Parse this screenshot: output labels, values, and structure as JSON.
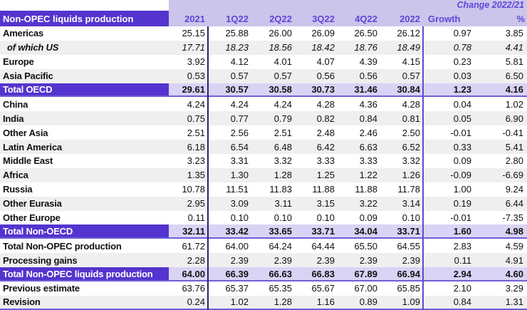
{
  "chart_data": {
    "type": "table",
    "title": "Non-OPEC liquids production",
    "change_header": "Change 2022/21",
    "columns": [
      "2021",
      "1Q22",
      "2Q22",
      "3Q22",
      "4Q22",
      "2022",
      "Growth",
      "%"
    ],
    "rows": [
      {
        "label": "Americas",
        "bg": "white",
        "values": [
          "25.15",
          "25.88",
          "26.00",
          "26.09",
          "26.50",
          "26.12",
          "0.97",
          "3.85"
        ]
      },
      {
        "label": "of which US",
        "bg": "stripe",
        "italic": true,
        "indent": true,
        "values": [
          "17.71",
          "18.23",
          "18.56",
          "18.42",
          "18.76",
          "18.49",
          "0.78",
          "4.41"
        ]
      },
      {
        "label": "Europe",
        "bg": "white",
        "values": [
          "3.92",
          "4.12",
          "4.01",
          "4.07",
          "4.39",
          "4.15",
          "0.23",
          "5.81"
        ]
      },
      {
        "label": "Asia Pacific",
        "bg": "stripe",
        "values": [
          "0.53",
          "0.57",
          "0.57",
          "0.56",
          "0.56",
          "0.57",
          "0.03",
          "6.50"
        ]
      },
      {
        "label": "Total OECD",
        "bg": "total",
        "line_below": true,
        "values": [
          "29.61",
          "30.57",
          "30.58",
          "30.73",
          "31.46",
          "30.84",
          "1.23",
          "4.16"
        ]
      },
      {
        "label": "China",
        "bg": "white",
        "values": [
          "4.24",
          "4.24",
          "4.24",
          "4.28",
          "4.36",
          "4.28",
          "0.04",
          "1.02"
        ]
      },
      {
        "label": "India",
        "bg": "stripe",
        "values": [
          "0.75",
          "0.77",
          "0.79",
          "0.82",
          "0.84",
          "0.81",
          "0.05",
          "6.90"
        ]
      },
      {
        "label": "Other Asia",
        "bg": "white",
        "values": [
          "2.51",
          "2.56",
          "2.51",
          "2.48",
          "2.46",
          "2.50",
          "-0.01",
          "-0.41"
        ]
      },
      {
        "label": "Latin America",
        "bg": "stripe",
        "values": [
          "6.18",
          "6.54",
          "6.48",
          "6.42",
          "6.63",
          "6.52",
          "0.33",
          "5.41"
        ]
      },
      {
        "label": "Middle East",
        "bg": "white",
        "values": [
          "3.23",
          "3.31",
          "3.32",
          "3.33",
          "3.33",
          "3.32",
          "0.09",
          "2.80"
        ]
      },
      {
        "label": "Africa",
        "bg": "stripe",
        "values": [
          "1.35",
          "1.30",
          "1.28",
          "1.25",
          "1.22",
          "1.26",
          "-0.09",
          "-6.69"
        ]
      },
      {
        "label": "Russia",
        "bg": "white",
        "values": [
          "10.78",
          "11.51",
          "11.83",
          "11.88",
          "11.88",
          "11.78",
          "1.00",
          "9.24"
        ]
      },
      {
        "label": "Other Eurasia",
        "bg": "stripe",
        "values": [
          "2.95",
          "3.09",
          "3.11",
          "3.15",
          "3.22",
          "3.14",
          "0.19",
          "6.44"
        ]
      },
      {
        "label": "Other Europe",
        "bg": "white",
        "values": [
          "0.11",
          "0.10",
          "0.10",
          "0.10",
          "0.09",
          "0.10",
          "-0.01",
          "-7.35"
        ]
      },
      {
        "label": "Total Non-OECD",
        "bg": "total",
        "line_below": true,
        "values": [
          "32.11",
          "33.42",
          "33.65",
          "33.71",
          "34.04",
          "33.71",
          "1.60",
          "4.98"
        ]
      },
      {
        "label": "Total Non-OPEC production",
        "bg": "white",
        "values": [
          "61.72",
          "64.00",
          "64.24",
          "64.44",
          "65.50",
          "64.55",
          "2.83",
          "4.59"
        ]
      },
      {
        "label": "Processing gains",
        "bg": "stripe",
        "values": [
          "2.28",
          "2.39",
          "2.39",
          "2.39",
          "2.39",
          "2.39",
          "0.11",
          "4.91"
        ]
      },
      {
        "label": "Total Non-OPEC liquids production",
        "bg": "total",
        "line_below": true,
        "values": [
          "64.00",
          "66.39",
          "66.63",
          "66.83",
          "67.89",
          "66.94",
          "2.94",
          "4.60"
        ]
      },
      {
        "label": "Previous estimate",
        "bg": "white",
        "values": [
          "63.76",
          "65.37",
          "65.35",
          "65.67",
          "67.00",
          "65.85",
          "2.10",
          "3.29"
        ]
      },
      {
        "label": "Revision",
        "bg": "stripe",
        "line_below": true,
        "values": [
          "0.24",
          "1.02",
          "1.28",
          "1.16",
          "0.89",
          "1.09",
          "0.84",
          "1.31"
        ]
      }
    ]
  },
  "colors": {
    "purple": "#5434ce",
    "lavender-header": "#cbc5ec",
    "lavender-total": "#d9d3f5",
    "stripe": "#efefef",
    "header-text": "#6244d8",
    "dark-line": "#26256b",
    "purple-line": "#6e60d6",
    "vline-2022": "#5a4bd0",
    "text": "#111111"
  }
}
